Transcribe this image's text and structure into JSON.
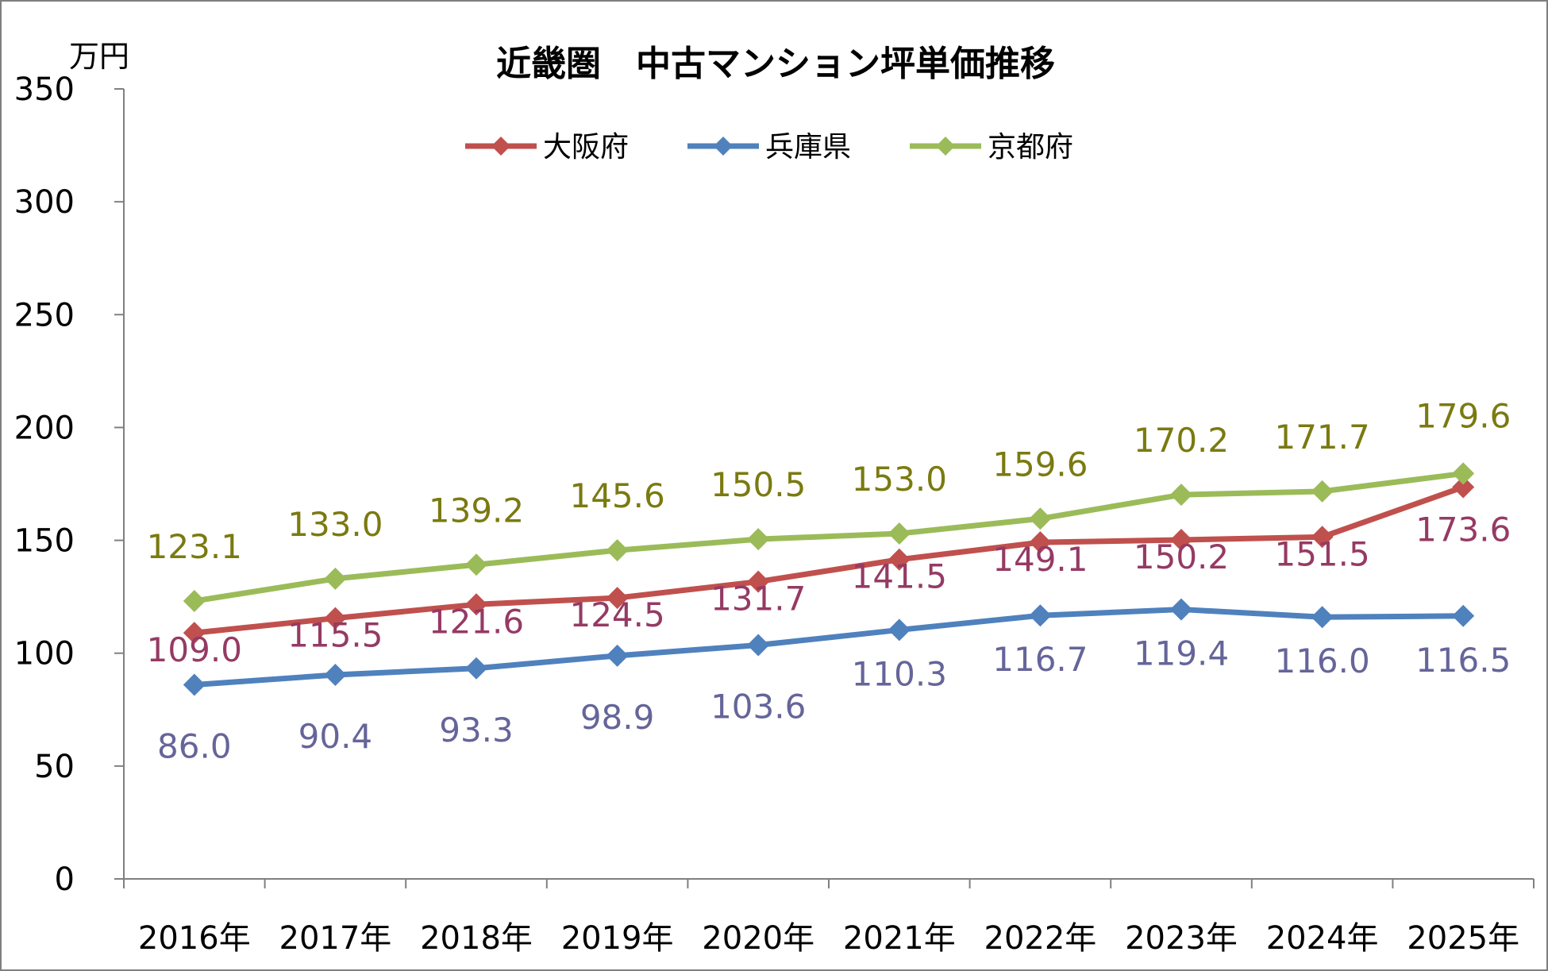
{
  "chart_data": {
    "type": "line",
    "title": "近畿圏　中古マンション坪単価推移",
    "ylabel": "万円",
    "xlabel": "",
    "ylim": [
      0,
      350
    ],
    "yticks": [
      0,
      50,
      100,
      150,
      200,
      250,
      300,
      350
    ],
    "categories": [
      "2016年",
      "2017年",
      "2018年",
      "2019年",
      "2020年",
      "2021年",
      "2022年",
      "2023年",
      "2024年",
      "2025年"
    ],
    "grid": false,
    "legend": "top-center",
    "series": [
      {
        "name": "大阪府",
        "color": "#c0504d",
        "label_color": "#953a64",
        "values": [
          109.0,
          115.5,
          121.6,
          124.5,
          131.7,
          141.5,
          149.1,
          150.2,
          151.5,
          173.6
        ],
        "labels": [
          "109.0",
          "115.5",
          "121.6",
          "124.5",
          "131.7",
          "141.5",
          "149.1",
          "150.2",
          "151.5",
          "173.6"
        ]
      },
      {
        "name": "兵庫県",
        "color": "#4f81bd",
        "label_color": "#65659a",
        "values": [
          86.0,
          90.4,
          93.3,
          98.9,
          103.6,
          110.3,
          116.7,
          119.4,
          116.0,
          116.5
        ],
        "labels": [
          "86.0",
          "90.4",
          "93.3",
          "98.9",
          "103.6",
          "110.3",
          "116.7",
          "119.4",
          "116.0",
          "116.5"
        ]
      },
      {
        "name": "京都府",
        "color": "#9bbb59",
        "label_color": "#7a7a10",
        "values": [
          123.1,
          133.0,
          139.2,
          145.6,
          150.5,
          153.0,
          159.6,
          170.2,
          171.7,
          179.6
        ],
        "labels": [
          "123.1",
          "133.0",
          "139.2",
          "145.6",
          "150.5",
          "153.0",
          "159.6",
          "170.2",
          "171.7",
          "179.6"
        ]
      }
    ]
  }
}
